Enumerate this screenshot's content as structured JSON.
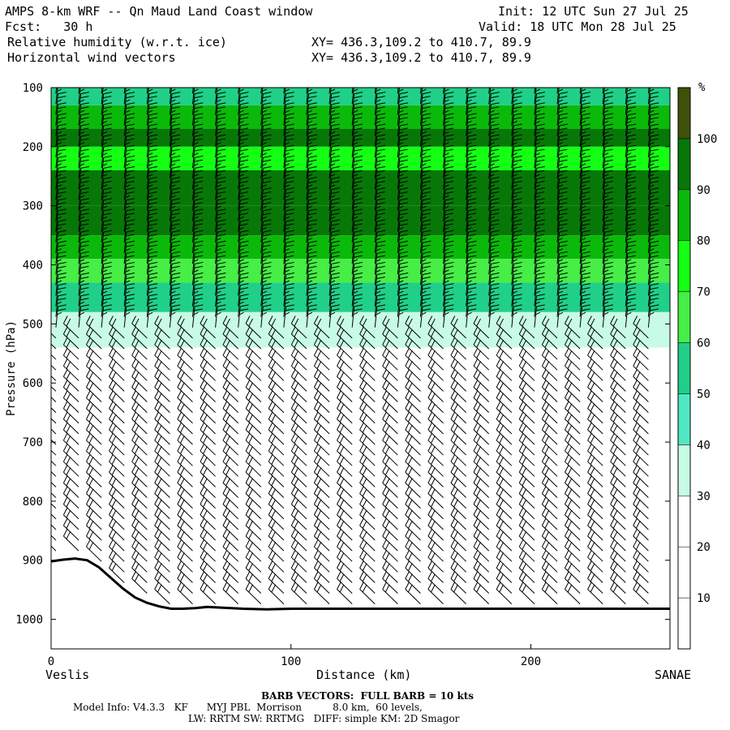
{
  "header": {
    "title": "AMPS 8-km WRF -- Qn Maud Land Coast window",
    "init": "Init: 12 UTC Sun 27 Jul 25",
    "forecast": "Fcst:   30 h",
    "valid": "Valid: 18 UTC Mon 28 Jul 25",
    "field1": "Relative humidity (w.r.t. ice)",
    "field2": "Horizontal wind vectors",
    "xy1": "XY= 436.3,109.2 to 410.7, 89.9",
    "xy2": "XY= 436.3,109.2 to 410.7, 89.9"
  },
  "footer": {
    "barb_note": "BARB VECTORS:  FULL BARB = 10 kts",
    "model_info": "Model Info: V4.3.3   KF      MYJ PBL  Morrison          8.0 km,  60 levels,",
    "physics": "LW: RRTM SW: RRTMG   DIFF: simple KM: 2D Smagor"
  },
  "chart_data": {
    "type": "heatmap",
    "title": "Relative humidity (w.r.t. ice)",
    "xlabel": "Distance (km)",
    "ylabel": "Pressure (hPa)",
    "xlim": [
      0,
      258
    ],
    "ylim": [
      1050,
      100
    ],
    "xticks": [
      0,
      100,
      200
    ],
    "yticks": [
      100,
      200,
      300,
      400,
      500,
      600,
      700,
      800,
      900,
      1000
    ],
    "x_start_label": "Veslis",
    "x_end_label": "SANAE",
    "colorbar": {
      "unit": "%",
      "levels": [
        10,
        20,
        30,
        40,
        50,
        60,
        70,
        80,
        90,
        100
      ],
      "colors": [
        "#ffffff",
        "#ffffff",
        "#ffffff",
        "#c8fbe6",
        "#4fe8c2",
        "#20d088",
        "#46ee46",
        "#14ff14",
        "#0bb90b",
        "#077807",
        "#3f5108"
      ]
    },
    "rh_layers": [
      {
        "p_top": 100,
        "p_bottom": 130,
        "rh": 55
      },
      {
        "p_top": 130,
        "p_bottom": 170,
        "rh": 80
      },
      {
        "p_top": 170,
        "p_bottom": 200,
        "rh": 95
      },
      {
        "p_top": 200,
        "p_bottom": 240,
        "rh": 75
      },
      {
        "p_top": 240,
        "p_bottom": 300,
        "rh": 90
      },
      {
        "p_top": 300,
        "p_bottom": 350,
        "rh": 95
      },
      {
        "p_top": 350,
        "p_bottom": 390,
        "rh": 82
      },
      {
        "p_top": 390,
        "p_bottom": 430,
        "rh": 68
      },
      {
        "p_top": 430,
        "p_bottom": 480,
        "rh": 55
      },
      {
        "p_top": 480,
        "p_bottom": 540,
        "rh": 38
      },
      {
        "p_top": 540,
        "p_bottom": 1000,
        "rh": 20
      }
    ],
    "wind": {
      "barb_note": "BARB VECTORS: FULL BARB = 10 kts",
      "upper_speed_kts": 25,
      "lower_speed_kts": 20
    },
    "terrain": {
      "x_km": [
        0,
        5,
        10,
        15,
        20,
        25,
        30,
        35,
        40,
        45,
        50,
        55,
        60,
        65,
        70,
        80,
        90,
        100,
        120,
        150,
        200,
        258
      ],
      "surface_p_hpa": [
        902,
        899,
        897,
        900,
        912,
        930,
        948,
        963,
        972,
        978,
        982,
        982,
        981,
        979,
        980,
        982,
        983,
        982,
        982,
        982,
        982,
        982
      ]
    }
  }
}
